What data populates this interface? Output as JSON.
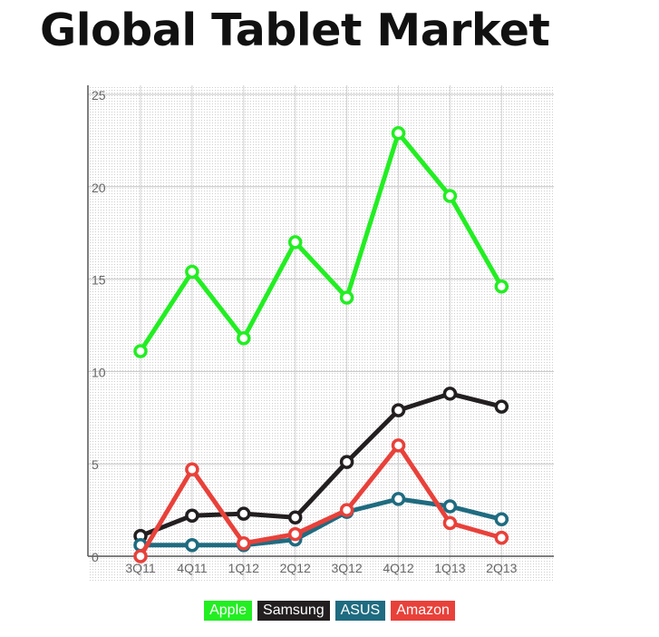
{
  "page": {
    "title": "Global Tablet Market"
  },
  "chart_data": {
    "type": "line",
    "title": "Global Tablet Market",
    "xlabel": "",
    "ylabel": "",
    "ylim": [
      0,
      25
    ],
    "yticks": [
      0,
      5,
      10,
      15,
      20,
      25
    ],
    "grid": true,
    "legend_position": "bottom-center",
    "categories": [
      "3Q11",
      "4Q11",
      "1Q12",
      "2Q12",
      "3Q12",
      "4Q12",
      "1Q13",
      "2Q13"
    ],
    "series": [
      {
        "name": "Apple",
        "color": "#22ee22",
        "values": [
          11.1,
          15.4,
          11.8,
          17.0,
          14.0,
          22.9,
          19.5,
          14.6
        ]
      },
      {
        "name": "Samsung",
        "color": "#231f20",
        "values": [
          1.1,
          2.2,
          2.3,
          2.1,
          5.1,
          7.9,
          8.8,
          8.1
        ]
      },
      {
        "name": "ASUS",
        "color": "#1f6b80",
        "values": [
          0.6,
          0.6,
          0.6,
          0.9,
          2.4,
          3.1,
          2.7,
          2.0
        ]
      },
      {
        "name": "Amazon",
        "color": "#e8413a",
        "values": [
          0.0,
          4.7,
          0.7,
          1.2,
          2.5,
          6.0,
          1.8,
          1.0
        ]
      }
    ]
  }
}
